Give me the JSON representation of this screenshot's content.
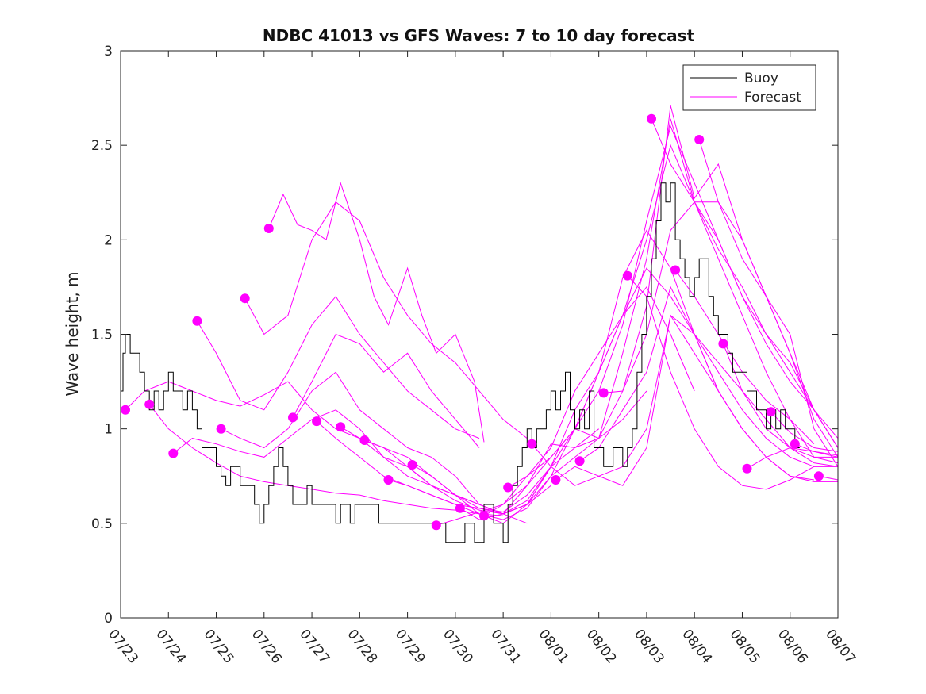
{
  "chart_data": {
    "type": "line",
    "title": "NDBC 41013 vs GFS Waves: 7 to 10 day forecast",
    "xlabel": "",
    "ylabel": "Wave height, m",
    "xlim": [
      0,
      15
    ],
    "ylim": [
      0,
      3
    ],
    "x_tick_labels": [
      "07/23",
      "07/24",
      "07/25",
      "07/26",
      "07/27",
      "07/28",
      "07/29",
      "07/30",
      "07/31",
      "08/01",
      "08/02",
      "08/03",
      "08/04",
      "08/05",
      "08/06",
      "08/07"
    ],
    "y_ticks": [
      0,
      0.5,
      1,
      1.5,
      2,
      2.5,
      3
    ],
    "y_tick_labels": [
      "0",
      "0.5",
      "1",
      "1.5",
      "2",
      "2.5",
      "3"
    ],
    "x_unit_note": "x values are fractional days where 0 = 07/23",
    "grid": false,
    "legend_position": "top-right",
    "colors": {
      "buoy": "#000000",
      "forecast": "#ff00ff",
      "axis": "#222222"
    },
    "legend": [
      {
        "label": "Buoy",
        "color": "#000000"
      },
      {
        "label": "Forecast",
        "color": "#ff00ff"
      }
    ],
    "buoy": {
      "name": "Buoy",
      "x": [
        0,
        0.05,
        0.1,
        0.2,
        0.3,
        0.4,
        0.5,
        0.6,
        0.7,
        0.8,
        0.9,
        1.0,
        1.1,
        1.2,
        1.3,
        1.4,
        1.5,
        1.6,
        1.7,
        1.8,
        1.9,
        2.0,
        2.1,
        2.2,
        2.3,
        2.4,
        2.5,
        2.6,
        2.7,
        2.8,
        2.9,
        3.0,
        3.1,
        3.2,
        3.3,
        3.4,
        3.5,
        3.6,
        3.7,
        3.8,
        3.9,
        4.0,
        4.1,
        4.2,
        4.3,
        4.4,
        4.5,
        4.6,
        4.7,
        4.8,
        4.9,
        5.0,
        5.2,
        5.4,
        5.6,
        5.8,
        6.0,
        6.2,
        6.4,
        6.6,
        6.8,
        7.0,
        7.2,
        7.4,
        7.6,
        7.8,
        8.0,
        8.1,
        8.2,
        8.3,
        8.4,
        8.5,
        8.6,
        8.7,
        8.8,
        8.9,
        9.0,
        9.1,
        9.2,
        9.3,
        9.4,
        9.5,
        9.6,
        9.7,
        9.8,
        9.9,
        10.0,
        10.1,
        10.2,
        10.3,
        10.4,
        10.5,
        10.6,
        10.7,
        10.8,
        10.9,
        11.0,
        11.1,
        11.2,
        11.3,
        11.4,
        11.5,
        11.6,
        11.7,
        11.8,
        11.9,
        12.0,
        12.1,
        12.2,
        12.3,
        12.4,
        12.5,
        12.6,
        12.7,
        12.8,
        12.9,
        13.0,
        13.1,
        13.2,
        13.3,
        13.4,
        13.5,
        13.6,
        13.7,
        13.8,
        13.9,
        14.0,
        14.1,
        14.2
      ],
      "y": [
        1.2,
        1.4,
        1.5,
        1.4,
        1.4,
        1.3,
        1.2,
        1.1,
        1.2,
        1.1,
        1.2,
        1.3,
        1.2,
        1.2,
        1.1,
        1.2,
        1.1,
        1.0,
        0.9,
        0.9,
        0.9,
        0.8,
        0.75,
        0.7,
        0.8,
        0.8,
        0.7,
        0.7,
        0.7,
        0.6,
        0.5,
        0.6,
        0.7,
        0.8,
        0.9,
        0.8,
        0.7,
        0.6,
        0.6,
        0.6,
        0.7,
        0.6,
        0.6,
        0.6,
        0.6,
        0.6,
        0.5,
        0.6,
        0.6,
        0.5,
        0.6,
        0.6,
        0.6,
        0.5,
        0.5,
        0.5,
        0.5,
        0.5,
        0.5,
        0.5,
        0.4,
        0.4,
        0.5,
        0.4,
        0.6,
        0.5,
        0.4,
        0.6,
        0.7,
        0.8,
        0.9,
        1.0,
        0.9,
        1.0,
        1.0,
        1.1,
        1.2,
        1.1,
        1.2,
        1.3,
        1.1,
        1.0,
        1.1,
        1.0,
        1.2,
        0.9,
        0.9,
        0.8,
        0.8,
        0.9,
        0.9,
        0.8,
        0.9,
        1.0,
        1.3,
        1.5,
        1.7,
        1.9,
        2.1,
        2.3,
        2.2,
        2.3,
        2.0,
        1.9,
        1.8,
        1.7,
        1.8,
        1.9,
        1.9,
        1.7,
        1.6,
        1.5,
        1.5,
        1.4,
        1.3,
        1.3,
        1.3,
        1.2,
        1.2,
        1.1,
        1.1,
        1.0,
        1.1,
        1.0,
        1.1,
        1.0,
        1.0,
        0.9,
        0.9
      ]
    },
    "forecast_series": [
      {
        "x": [
          0.1,
          0.5,
          1.0,
          1.5,
          2.0,
          2.5,
          3.0,
          3.5,
          4.0,
          4.5,
          5.0,
          5.5,
          6.0,
          6.5,
          7.0,
          7.5,
          8.0,
          8.5,
          9.0
        ],
        "y": [
          1.1,
          1.2,
          1.25,
          1.2,
          1.15,
          1.12,
          1.18,
          1.25,
          1.1,
          1.0,
          0.95,
          0.9,
          0.8,
          0.7,
          0.65,
          0.6,
          0.55,
          0.6,
          0.7
        ]
      },
      {
        "x": [
          0.6,
          1.0,
          1.5,
          2.0,
          2.5,
          3.0,
          3.5,
          4.0,
          4.5,
          5.0,
          5.5,
          6.0,
          6.5,
          7.0,
          7.5,
          8.0
        ],
        "y": [
          1.13,
          1.0,
          0.9,
          0.82,
          0.75,
          0.72,
          0.7,
          0.68,
          0.66,
          0.65,
          0.62,
          0.6,
          0.58,
          0.57,
          0.55,
          0.54
        ]
      },
      {
        "x": [
          1.1,
          1.5,
          2.0,
          2.5,
          3.0,
          3.5,
          4.0,
          4.5,
          5.0,
          5.5,
          6.0,
          6.5,
          7.0,
          7.5,
          8.0,
          8.5,
          9.0
        ],
        "y": [
          0.87,
          0.95,
          0.92,
          0.88,
          0.85,
          0.95,
          1.05,
          1.1,
          1.0,
          0.85,
          0.75,
          0.7,
          0.65,
          0.6,
          0.55,
          0.6,
          0.8
        ]
      },
      {
        "x": [
          1.6,
          2.0,
          2.5,
          3.0,
          3.5,
          4.0,
          4.5,
          5.0,
          5.5,
          6.0,
          6.5,
          7.0,
          7.5
        ],
        "y": [
          1.57,
          1.4,
          1.15,
          1.1,
          1.3,
          1.55,
          1.7,
          1.5,
          1.35,
          1.2,
          1.1,
          1.0,
          0.95
        ]
      },
      {
        "x": [
          2.1,
          2.5,
          3.0,
          3.5,
          4.0,
          4.5,
          5.0,
          5.5,
          6.0,
          6.5,
          7.0,
          7.5,
          8.0,
          8.5
        ],
        "y": [
          1.0,
          0.95,
          0.9,
          1.0,
          1.2,
          1.3,
          1.1,
          1.0,
          0.9,
          0.85,
          0.75,
          0.6,
          0.55,
          0.5
        ]
      },
      {
        "x": [
          2.6,
          3.0,
          3.5,
          4.0,
          4.5,
          5.0,
          5.5,
          6.0,
          6.5,
          7.0,
          7.5,
          8.0,
          8.5
        ],
        "y": [
          1.69,
          1.5,
          1.6,
          2.0,
          2.2,
          2.1,
          1.8,
          1.6,
          1.45,
          1.35,
          1.2,
          1.05,
          0.95
        ]
      },
      {
        "x": [
          3.1,
          3.4,
          3.7,
          4.0,
          4.3,
          4.6,
          5.0,
          5.3,
          5.6,
          6.0,
          6.3,
          6.6,
          7.0,
          7.4,
          7.6
        ],
        "y": [
          2.06,
          2.24,
          2.08,
          2.05,
          2.0,
          2.3,
          2.0,
          1.7,
          1.55,
          1.85,
          1.6,
          1.4,
          1.5,
          1.25,
          0.93
        ]
      },
      {
        "x": [
          3.6,
          4.0,
          4.5,
          5.0,
          5.5,
          6.0,
          6.5,
          7.0,
          7.5
        ],
        "y": [
          1.06,
          1.25,
          1.5,
          1.45,
          1.3,
          1.4,
          1.2,
          1.05,
          0.9
        ]
      },
      {
        "x": [
          4.1,
          4.5,
          5.0,
          5.5,
          6.0,
          6.5,
          7.0,
          7.5,
          8.0,
          8.5,
          9.0,
          9.5,
          10.0
        ],
        "y": [
          1.04,
          0.95,
          0.85,
          0.75,
          0.7,
          0.65,
          0.6,
          0.58,
          0.56,
          0.65,
          0.8,
          0.9,
          1.0
        ]
      },
      {
        "x": [
          4.6,
          5.0,
          5.5,
          6.0,
          6.5,
          7.0,
          7.5,
          8.0,
          8.5,
          9.0,
          9.5,
          10.0,
          10.5,
          11.0
        ],
        "y": [
          1.01,
          0.95,
          0.85,
          0.8,
          0.7,
          0.62,
          0.57,
          0.55,
          0.6,
          0.75,
          0.85,
          0.95,
          1.05,
          1.2
        ]
      },
      {
        "x": [
          5.1,
          5.5,
          6.0,
          6.5,
          7.0,
          7.5,
          8.0,
          8.5,
          9.0,
          9.5,
          10.0,
          10.5,
          11.0,
          11.5,
          12.0
        ],
        "y": [
          0.94,
          0.9,
          0.85,
          0.75,
          0.65,
          0.55,
          0.5,
          0.6,
          0.8,
          1.1,
          1.3,
          1.6,
          1.75,
          1.5,
          1.2
        ]
      },
      {
        "x": [
          5.6,
          6.0,
          6.5,
          7.0,
          7.5,
          8.0,
          8.5,
          9.0,
          9.5,
          10.0,
          10.5,
          11.0,
          11.5,
          12.0,
          12.5,
          13.0
        ],
        "y": [
          0.73,
          0.7,
          0.65,
          0.6,
          0.55,
          0.52,
          0.58,
          0.75,
          1.0,
          1.3,
          1.8,
          2.05,
          1.85,
          1.5,
          1.2,
          1.0
        ]
      },
      {
        "x": [
          6.1,
          6.5,
          7.0,
          7.5,
          8.0,
          8.5,
          9.0,
          9.5,
          10.0,
          10.5,
          11.0,
          11.5,
          12.0,
          12.5,
          13.0,
          13.5,
          14.0,
          14.5,
          15.0
        ],
        "y": [
          0.81,
          0.75,
          0.65,
          0.58,
          0.55,
          0.62,
          0.8,
          1.0,
          1.2,
          1.55,
          2.1,
          2.6,
          2.3,
          2.0,
          1.7,
          1.5,
          1.35,
          1.1,
          0.9
        ]
      },
      {
        "x": [
          6.6,
          7.0,
          7.5,
          8.0,
          8.5,
          9.0,
          9.5,
          10.0,
          10.5,
          11.0,
          11.5,
          12.0,
          12.5,
          13.0,
          13.5,
          14.0,
          14.5,
          15.0
        ],
        "y": [
          0.49,
          0.52,
          0.56,
          0.6,
          0.75,
          0.9,
          1.2,
          1.4,
          1.6,
          2.0,
          2.5,
          2.2,
          1.9,
          1.6,
          1.3,
          1.05,
          0.85,
          0.82
        ]
      },
      {
        "x": [
          7.1,
          7.5,
          8.0,
          8.5,
          9.0,
          9.5,
          10.0,
          10.5,
          11.0,
          11.5,
          12.0,
          12.5,
          13.0,
          13.5,
          14.0,
          14.5,
          15.0
        ],
        "y": [
          0.58,
          0.52,
          0.55,
          0.7,
          0.92,
          0.9,
          0.95,
          1.2,
          1.65,
          2.71,
          2.22,
          2.4,
          2.0,
          1.7,
          1.4,
          1.05,
          0.85
        ]
      },
      {
        "x": [
          7.6,
          8.0,
          8.5,
          9.0,
          9.5,
          10.0,
          10.5,
          11.0,
          11.5,
          12.0,
          12.5,
          13.0,
          13.5,
          14.0,
          14.5,
          15.0
        ],
        "y": [
          0.54,
          0.6,
          0.7,
          0.85,
          1.0,
          1.3,
          1.6,
          1.85,
          1.7,
          1.5,
          1.35,
          1.2,
          1.05,
          0.9,
          0.82,
          0.8
        ]
      },
      {
        "x": [
          8.1,
          8.5,
          9.0,
          9.5,
          10.0,
          10.5,
          11.0,
          11.5,
          12.0,
          12.5,
          13.0,
          13.5,
          14.0,
          14.5,
          15.0
        ],
        "y": [
          0.69,
          0.75,
          0.85,
          1.0,
          0.95,
          1.4,
          1.9,
          2.64,
          2.2,
          2.2,
          1.9,
          1.7,
          1.5,
          1.0,
          0.8
        ]
      },
      {
        "x": [
          8.6,
          9.0,
          9.5,
          10.0,
          10.5,
          11.0,
          11.5,
          12.0,
          12.5,
          13.0,
          13.5,
          14.0,
          14.5,
          15.0
        ],
        "y": [
          0.92,
          0.8,
          0.7,
          0.75,
          0.8,
          1.0,
          1.6,
          1.5,
          1.2,
          1.0,
          0.85,
          0.75,
          0.72,
          0.72
        ]
      },
      {
        "x": [
          9.1,
          9.5,
          10.0,
          10.5,
          11.0,
          11.5,
          12.0,
          12.5,
          13.0,
          13.5,
          14.0,
          14.5
        ],
        "y": [
          0.73,
          0.8,
          0.75,
          0.7,
          0.9,
          1.6,
          1.4,
          1.2,
          1.0,
          0.85,
          0.75,
          0.73
        ]
      },
      {
        "x": [
          9.6,
          10.0,
          10.5,
          11.0,
          11.5,
          12.0,
          12.5,
          13.0,
          13.5,
          14.0,
          14.5,
          15.0
        ],
        "y": [
          0.83,
          0.9,
          1.1,
          1.3,
          1.75,
          1.5,
          1.3,
          1.1,
          0.95,
          0.85,
          0.8,
          0.8
        ]
      },
      {
        "x": [
          10.1,
          10.5,
          11.0,
          11.5,
          12.0,
          12.5,
          13.0,
          13.5,
          14.0,
          14.5,
          15.0
        ],
        "y": [
          1.19,
          1.2,
          1.5,
          2.05,
          2.2,
          1.95,
          1.75,
          1.5,
          1.3,
          1.1,
          0.9
        ]
      },
      {
        "x": [
          10.6,
          11.0,
          11.5,
          12.0,
          12.5,
          13.0,
          13.5,
          14.0,
          14.5,
          15.0
        ],
        "y": [
          1.81,
          1.7,
          1.3,
          1.0,
          0.8,
          0.7,
          0.68,
          0.73,
          0.8,
          0.8
        ]
      },
      {
        "x": [
          11.1,
          11.5,
          12.0,
          12.5,
          13.0,
          13.5,
          14.0,
          14.5,
          15.0
        ],
        "y": [
          2.64,
          2.4,
          2.2,
          2.0,
          1.7,
          1.45,
          1.25,
          1.1,
          0.95
        ]
      },
      {
        "x": [
          11.6,
          12.0,
          12.5,
          13.0,
          13.5,
          14.0,
          14.5
        ],
        "y": [
          1.84,
          1.7,
          1.5,
          1.3,
          1.15,
          1.05,
          0.92
        ]
      },
      {
        "x": [
          12.1,
          12.5,
          13.0,
          13.5,
          14.0,
          14.5,
          15.0
        ],
        "y": [
          2.53,
          2.2,
          2.0,
          1.7,
          1.4,
          1.1,
          0.9
        ]
      },
      {
        "x": [
          12.6,
          13.0,
          13.5,
          14.0,
          14.5,
          15.0
        ],
        "y": [
          1.45,
          1.2,
          1.0,
          0.9,
          0.85,
          0.85
        ]
      },
      {
        "x": [
          13.1,
          13.5,
          14.0,
          14.5,
          15.0
        ],
        "y": [
          0.79,
          0.85,
          0.9,
          0.88,
          0.86
        ]
      },
      {
        "x": [
          13.6,
          14.0,
          14.5,
          15.0
        ],
        "y": [
          1.09,
          0.98,
          0.9,
          0.88
        ]
      },
      {
        "x": [
          14.1,
          14.5,
          15.0
        ],
        "y": [
          0.92,
          0.88,
          0.85
        ]
      },
      {
        "x": [
          14.6,
          15.0
        ],
        "y": [
          0.75,
          0.73
        ]
      }
    ],
    "forecast_markers": {
      "x": [
        0.1,
        0.6,
        1.1,
        1.6,
        2.1,
        2.6,
        3.1,
        3.6,
        4.1,
        4.6,
        5.1,
        5.6,
        6.1,
        6.6,
        7.1,
        7.6,
        8.1,
        8.6,
        9.1,
        9.6,
        10.1,
        10.6,
        11.1,
        11.6,
        12.1,
        12.6,
        13.1,
        13.6,
        14.1,
        14.6
      ],
      "y": [
        1.1,
        1.13,
        0.87,
        1.57,
        1.0,
        1.69,
        2.06,
        1.06,
        1.04,
        1.01,
        0.94,
        0.73,
        0.81,
        0.49,
        0.58,
        0.54,
        0.69,
        0.92,
        0.73,
        0.83,
        1.19,
        1.81,
        2.64,
        1.84,
        2.53,
        1.45,
        0.79,
        1.09,
        0.92,
        0.75
      ]
    }
  }
}
